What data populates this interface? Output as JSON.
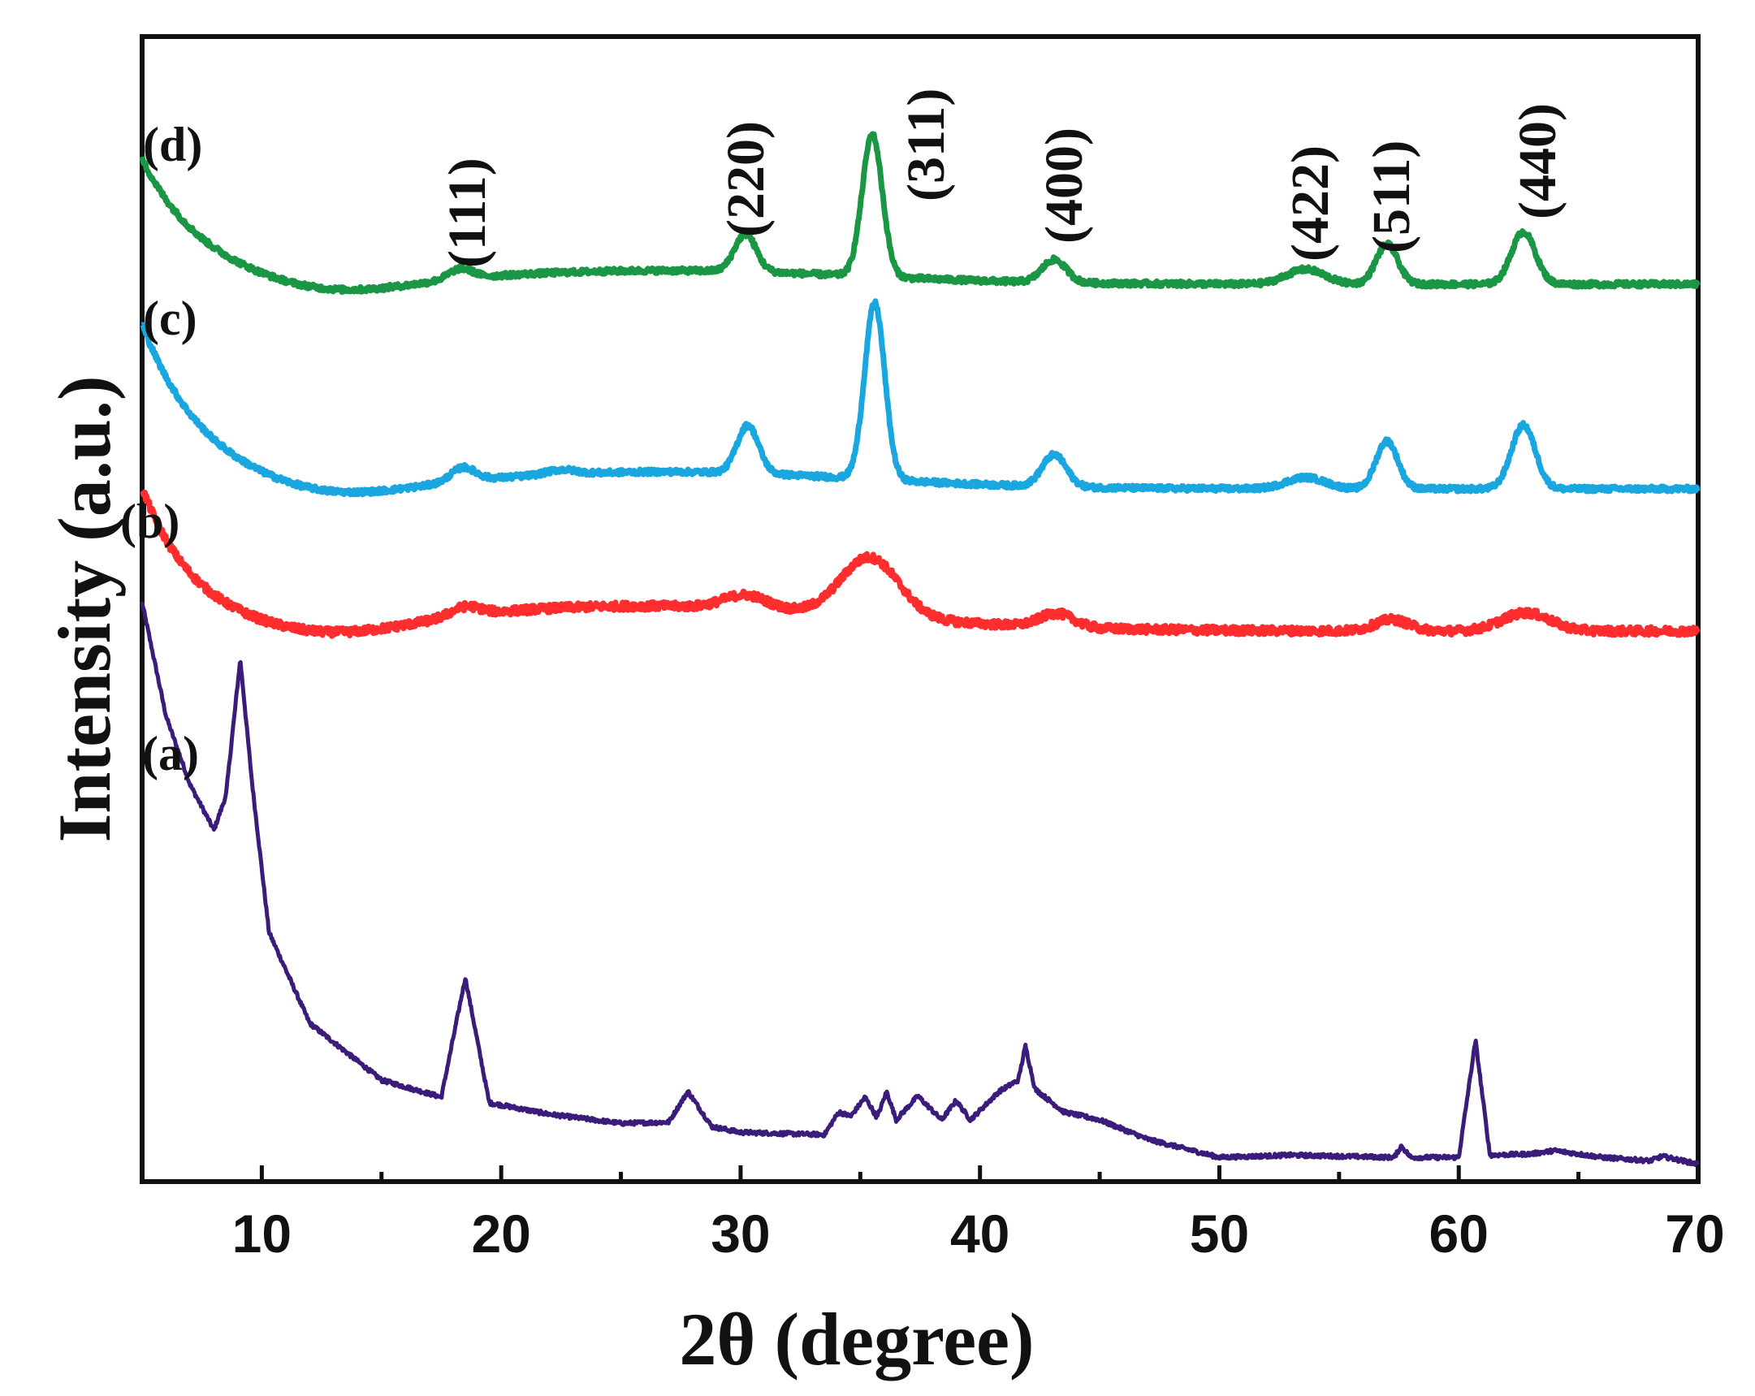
{
  "chart_data": {
    "type": "line",
    "title": "",
    "xlabel": "2θ (degree)",
    "ylabel": "Intensity (a.u.)",
    "xlim": [
      5,
      70
    ],
    "xticks": [
      10,
      20,
      30,
      40,
      50,
      60,
      70
    ],
    "xtick_labels": [
      "10",
      "20",
      "30",
      "40",
      "50",
      "60",
      "70"
    ],
    "y_scale": "arbitrary offset units",
    "series": [
      {
        "name": "(a)",
        "color": "#3b1c7a",
        "baseline": 0,
        "start": 50,
        "start_decay": 2.2,
        "noise": 0.35,
        "points": [
          [
            5,
            50
          ],
          [
            6,
            40
          ],
          [
            7,
            34
          ],
          [
            8,
            30
          ],
          [
            8.5,
            33
          ],
          [
            9.1,
            45
          ],
          [
            9.6,
            34
          ],
          [
            10.3,
            21
          ],
          [
            12,
            13
          ],
          [
            15,
            8
          ],
          [
            17.5,
            6.5
          ],
          [
            18.5,
            17
          ],
          [
            19.5,
            6
          ],
          [
            22,
            5
          ],
          [
            25,
            4.2
          ],
          [
            27,
            4.3
          ],
          [
            27.8,
            7
          ],
          [
            28.8,
            3.9
          ],
          [
            30,
            3.4
          ],
          [
            33.5,
            3.2
          ],
          [
            34.1,
            5.2
          ],
          [
            34.6,
            4.8
          ],
          [
            35.2,
            6.5
          ],
          [
            35.7,
            4.7
          ],
          [
            36.1,
            7
          ],
          [
            36.5,
            4.5
          ],
          [
            37.4,
            6.6
          ],
          [
            38.4,
            4.5
          ],
          [
            39,
            6.2
          ],
          [
            39.6,
            4.5
          ],
          [
            40.8,
            7
          ],
          [
            41.6,
            8
          ],
          [
            41.9,
            11
          ],
          [
            42.3,
            7.2
          ],
          [
            43.5,
            5.2
          ],
          [
            45,
            4.5
          ],
          [
            47,
            2.8
          ],
          [
            50,
            1.2
          ],
          [
            53,
            1.4
          ],
          [
            57.3,
            1.2
          ],
          [
            57.6,
            2.2
          ],
          [
            58,
            1.2
          ],
          [
            60,
            1.2
          ],
          [
            60.7,
            11.5
          ],
          [
            61.3,
            1.4
          ],
          [
            63,
            1.5
          ],
          [
            64,
            1.8
          ],
          [
            66,
            1.2
          ],
          [
            68,
            0.9
          ],
          [
            68.5,
            1.3
          ],
          [
            70,
            0.6
          ]
        ]
      },
      {
        "name": "(b)",
        "color": "#ff2d2d",
        "baseline": 47.5,
        "start": 60,
        "start_decay": 2.2,
        "noise": 0.7,
        "peaks": [
          [
            18.5,
            0.8,
            0.6
          ],
          [
            30.2,
            1.2,
            0.9
          ],
          [
            35.4,
            5.2,
            1.2
          ],
          [
            43.2,
            1.2,
            0.7
          ],
          [
            57.2,
            1.0,
            0.7
          ],
          [
            62.8,
            1.6,
            1.0
          ]
        ],
        "hump": [
          26,
          2.2,
          9
        ]
      },
      {
        "name": "(c)",
        "color": "#1aa7e0",
        "baseline": 60,
        "start": 74.5,
        "start_decay": 2.6,
        "noise": 0.45,
        "peaks": [
          [
            18.4,
            1.2,
            0.5
          ],
          [
            22.5,
            0.4,
            0.6
          ],
          [
            30.3,
            4.2,
            0.45
          ],
          [
            35.6,
            15.5,
            0.42
          ],
          [
            43.1,
            2.8,
            0.5
          ],
          [
            53.6,
            1.0,
            0.8
          ],
          [
            57.0,
            4.2,
            0.45
          ],
          [
            62.7,
            5.6,
            0.5
          ]
        ],
        "hump": [
          27,
          1.5,
          8
        ]
      },
      {
        "name": "(d)",
        "color": "#1a9645",
        "baseline": 78,
        "start": 89,
        "start_decay": 2.6,
        "noise": 0.45,
        "peaks": [
          [
            18.3,
            0.9,
            0.5
          ],
          [
            30.2,
            3.3,
            0.45
          ],
          [
            35.5,
            12.5,
            0.42
          ],
          [
            43.1,
            2.0,
            0.5
          ],
          [
            53.6,
            1.3,
            0.8
          ],
          [
            57.0,
            3.5,
            0.45
          ],
          [
            62.7,
            4.6,
            0.5
          ]
        ],
        "hump": [
          27,
          1.2,
          8
        ]
      }
    ],
    "series_labels": [
      "(a)",
      "(b)",
      "(c)",
      "(d)"
    ],
    "peak_labels": [
      "(111)",
      "(220)",
      "(311)",
      "(400)",
      "(422)",
      "(511)",
      "(440)"
    ],
    "peak_positions": [
      18.5,
      30.2,
      35.5,
      43.2,
      53.6,
      57.1,
      62.7
    ]
  }
}
